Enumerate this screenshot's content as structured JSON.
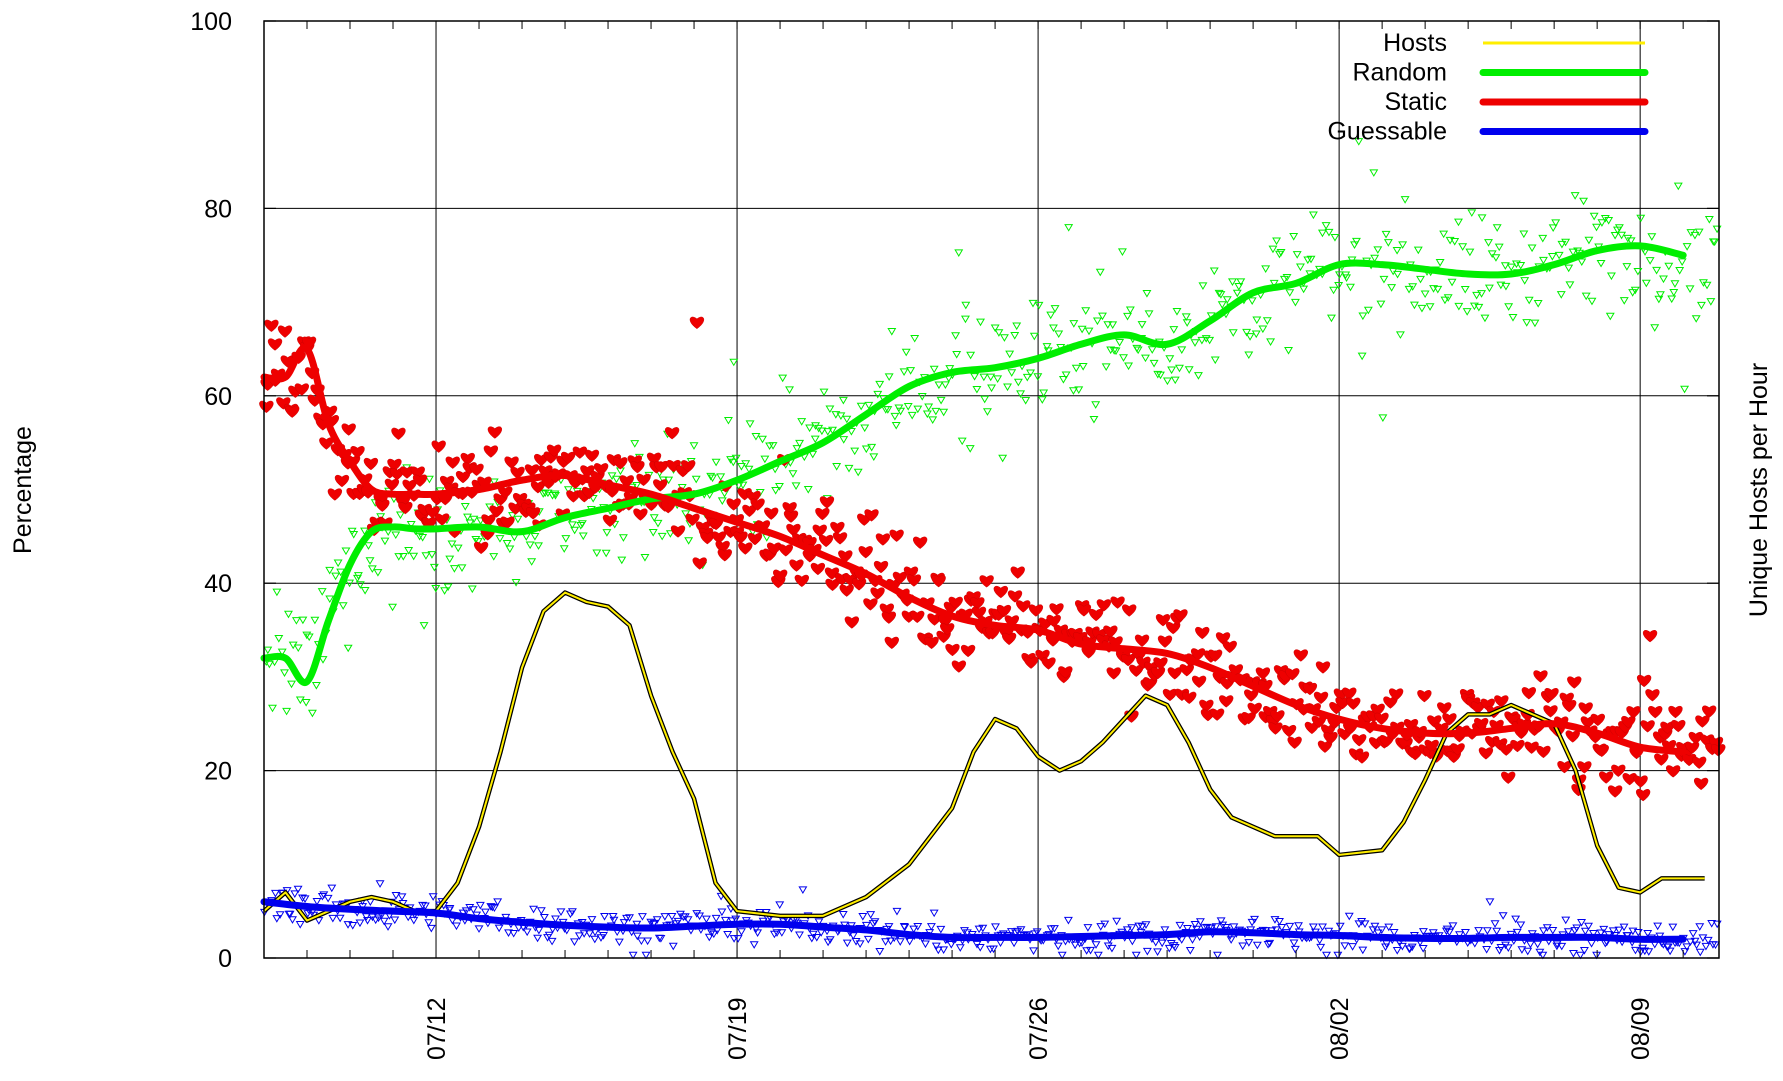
{
  "chart_data": {
    "type": "line",
    "ylabel": "Percentage",
    "y2label": "Unique Hosts per Hour",
    "ylim": [
      0,
      100
    ],
    "y_ticks": [
      "0",
      "20",
      "40",
      "60",
      "80",
      "100"
    ],
    "x_tick_labels": [
      "07/12",
      "07/19",
      "07/26",
      "08/02",
      "08/09"
    ],
    "grid": true,
    "legend_position": "top-right",
    "series": [
      {
        "name": "Hosts",
        "color": "#ffee00",
        "style": "thin-line",
        "x": [
          "07/08",
          "07/08 12:00",
          "07/09",
          "07/09 12:00",
          "07/10",
          "07/10 12:00",
          "07/11",
          "07/11 12:00",
          "07/12",
          "07/12 12:00",
          "07/13",
          "07/13 12:00",
          "07/14",
          "07/14 12:00",
          "07/15",
          "07/15 12:00",
          "07/16",
          "07/16 12:00",
          "07/17",
          "07/17 12:00",
          "07/18",
          "07/18 12:00",
          "07/19",
          "07/20",
          "07/21",
          "07/22",
          "07/23",
          "07/24",
          "07/24 12:00",
          "07/25",
          "07/25 12:00",
          "07/26",
          "07/26 12:00",
          "07/27",
          "07/27 12:00",
          "07/28",
          "07/28 12:00",
          "07/29",
          "07/29 12:00",
          "07/30",
          "07/30 12:00",
          "07/31",
          "07/31 12:00",
          "08/01",
          "08/01 12:00",
          "08/02",
          "08/03",
          "08/03 12:00",
          "08/04",
          "08/04 12:00",
          "08/05",
          "08/05 12:00",
          "08/06",
          "08/06 12:00",
          "08/07",
          "08/07 12:00",
          "08/08",
          "08/08 12:00",
          "08/09",
          "08/09 12:00",
          "08/10",
          "08/10 12:00"
        ],
        "y": [
          5,
          7,
          4,
          5,
          6,
          6.5,
          6,
          5,
          5,
          8,
          14,
          22,
          31,
          37,
          39,
          38,
          37.5,
          35.5,
          28,
          22,
          17,
          8,
          5,
          4.5,
          4.5,
          6.5,
          10,
          16,
          22,
          25.5,
          24.5,
          21.5,
          20,
          21,
          23,
          25.5,
          28,
          27,
          23,
          18,
          15,
          14,
          13,
          13,
          13,
          11,
          11.5,
          14.5,
          19,
          24,
          26,
          26,
          27,
          26,
          25,
          20,
          12,
          7.5,
          7,
          8.5,
          8.5,
          8.5
        ]
      },
      {
        "name": "Random",
        "color": "#00ee00",
        "style": "thick-line-with-triangle-markers",
        "x": [
          "07/08",
          "07/08 12:00",
          "07/09",
          "07/09 12:00",
          "07/10",
          "07/10 12:00",
          "07/11",
          "07/11 12:00",
          "07/12",
          "07/13",
          "07/14",
          "07/15",
          "07/16",
          "07/17",
          "07/18",
          "07/19",
          "07/20",
          "07/21",
          "07/22",
          "07/23",
          "07/24",
          "07/25",
          "07/26",
          "07/27",
          "07/28",
          "07/29",
          "07/30",
          "07/31",
          "08/01",
          "08/02",
          "08/03",
          "08/04",
          "08/05",
          "08/06",
          "08/07",
          "08/08",
          "08/09",
          "08/10"
        ],
        "y": [
          32,
          32,
          29.5,
          36,
          42,
          45.5,
          46,
          45.8,
          45.8,
          46,
          45.5,
          47,
          48,
          49,
          49.5,
          51,
          53,
          55,
          58,
          61,
          62.5,
          63,
          64,
          65.5,
          66.5,
          65.5,
          68,
          71,
          72,
          74,
          74,
          73.5,
          73,
          73,
          74,
          75.5,
          76,
          75
        ]
      },
      {
        "name": "Static",
        "color": "#ee0000",
        "style": "thick-line-with-heart-markers",
        "x": [
          "07/08",
          "07/08 12:00",
          "07/09",
          "07/09 12:00",
          "07/10",
          "07/10 12:00",
          "07/11",
          "07/11 12:00",
          "07/12",
          "07/13",
          "07/14",
          "07/15",
          "07/16",
          "07/17",
          "07/18",
          "07/19",
          "07/20",
          "07/21",
          "07/22",
          "07/23",
          "07/24",
          "07/25",
          "07/26",
          "07/27",
          "07/28",
          "07/29",
          "07/30",
          "07/31",
          "08/01",
          "08/02",
          "08/03",
          "08/04",
          "08/05",
          "08/06",
          "08/07",
          "08/08",
          "08/09",
          "08/10"
        ],
        "y": [
          62,
          62,
          65,
          57,
          53,
          50,
          49.5,
          49.5,
          49.5,
          50,
          51,
          51.5,
          50.5,
          49.5,
          48,
          46.5,
          45,
          43,
          41,
          38.5,
          36.5,
          35.5,
          35,
          33.5,
          33,
          32.5,
          31,
          29,
          27,
          25.5,
          24.5,
          24,
          24,
          24.5,
          25,
          24,
          22.5,
          22
        ]
      },
      {
        "name": "Guessable",
        "color": "#0000ee",
        "style": "thick-line-with-triangle-markers",
        "x": [
          "07/08",
          "07/09",
          "07/10",
          "07/11",
          "07/12",
          "07/13",
          "07/14",
          "07/15",
          "07/16",
          "07/17",
          "07/18",
          "07/19",
          "07/20",
          "07/21",
          "07/22",
          "07/23",
          "07/24",
          "07/25",
          "07/26",
          "07/27",
          "07/28",
          "07/29",
          "07/30",
          "07/31",
          "08/01",
          "08/02",
          "08/03",
          "08/04",
          "08/05",
          "08/06",
          "08/07",
          "08/08",
          "08/09",
          "08/10"
        ],
        "y": [
          6,
          5.5,
          5.2,
          5,
          4.8,
          4.2,
          3.8,
          3.5,
          3.3,
          3.2,
          3.4,
          3.6,
          3.6,
          3.3,
          3,
          2.5,
          2.2,
          2.2,
          2.2,
          2.3,
          2.4,
          2.5,
          2.8,
          2.7,
          2.5,
          2.4,
          2.2,
          2.1,
          2.1,
          2.2,
          2.2,
          2.2,
          2,
          2
        ]
      }
    ]
  }
}
